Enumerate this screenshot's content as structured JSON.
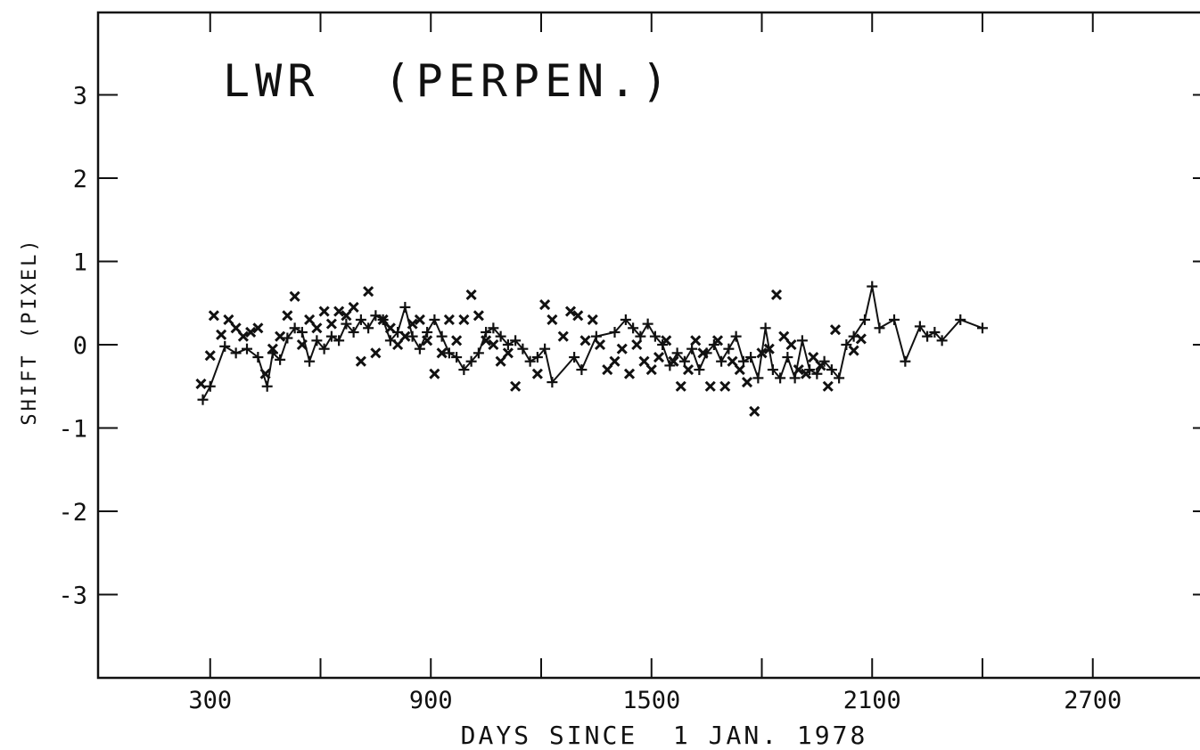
{
  "chart_data": {
    "type": "scatter",
    "title": "LWR  (PERPEN.)",
    "xlabel": "DAYS SINCE  1 JAN. 1978",
    "ylabel": "SHIFT (PIXEL)",
    "xlim": [
      0,
      2800
    ],
    "ylim": [
      -4,
      4
    ],
    "x_tick_values": [
      300,
      600,
      900,
      1200,
      1500,
      1800,
      2100,
      2400,
      2700
    ],
    "x_tick_labels": [
      "300",
      "",
      "900",
      "",
      "1500",
      "",
      "2100",
      "",
      "2700"
    ],
    "y_tick_values": [
      3,
      2,
      1,
      0,
      -1,
      -2,
      -3
    ],
    "y_tick_labels": [
      "3",
      "2",
      "1",
      "0",
      "-1",
      "-2",
      "-3"
    ],
    "grid": false,
    "series": [
      {
        "marker": "plus-line",
        "points": [
          [
            280,
            -0.66
          ],
          [
            300,
            -0.5
          ],
          [
            340,
            -0.02
          ],
          [
            370,
            -0.1
          ],
          [
            400,
            -0.05
          ],
          [
            430,
            -0.15
          ],
          [
            455,
            -0.5
          ],
          [
            470,
            -0.1
          ],
          [
            490,
            -0.18
          ],
          [
            510,
            0.08
          ],
          [
            530,
            0.2
          ],
          [
            550,
            0.15
          ],
          [
            570,
            -0.2
          ],
          [
            590,
            0.05
          ],
          [
            610,
            -0.05
          ],
          [
            630,
            0.1
          ],
          [
            650,
            0.05
          ],
          [
            670,
            0.25
          ],
          [
            690,
            0.15
          ],
          [
            710,
            0.3
          ],
          [
            730,
            0.2
          ],
          [
            750,
            0.35
          ],
          [
            770,
            0.3
          ],
          [
            790,
            0.05
          ],
          [
            810,
            0.15
          ],
          [
            830,
            0.45
          ],
          [
            850,
            0.1
          ],
          [
            870,
            -0.05
          ],
          [
            890,
            0.15
          ],
          [
            910,
            0.3
          ],
          [
            930,
            0.1
          ],
          [
            950,
            -0.1
          ],
          [
            970,
            -0.15
          ],
          [
            990,
            -0.3
          ],
          [
            1010,
            -0.2
          ],
          [
            1030,
            -0.1
          ],
          [
            1050,
            0.15
          ],
          [
            1070,
            0.2
          ],
          [
            1090,
            0.1
          ],
          [
            1110,
            0.0
          ],
          [
            1130,
            0.05
          ],
          [
            1150,
            -0.05
          ],
          [
            1170,
            -0.2
          ],
          [
            1190,
            -0.15
          ],
          [
            1210,
            -0.05
          ],
          [
            1230,
            -0.45
          ],
          [
            1290,
            -0.15
          ],
          [
            1310,
            -0.3
          ],
          [
            1350,
            0.1
          ],
          [
            1400,
            0.15
          ],
          [
            1430,
            0.3
          ],
          [
            1450,
            0.2
          ],
          [
            1470,
            0.1
          ],
          [
            1490,
            0.25
          ],
          [
            1510,
            0.1
          ],
          [
            1530,
            0.0
          ],
          [
            1550,
            -0.25
          ],
          [
            1570,
            -0.1
          ],
          [
            1590,
            -0.2
          ],
          [
            1610,
            -0.05
          ],
          [
            1630,
            -0.3
          ],
          [
            1650,
            -0.1
          ],
          [
            1670,
            0.0
          ],
          [
            1690,
            -0.2
          ],
          [
            1710,
            -0.05
          ],
          [
            1730,
            0.1
          ],
          [
            1750,
            -0.2
          ],
          [
            1770,
            -0.15
          ],
          [
            1790,
            -0.4
          ],
          [
            1810,
            0.2
          ],
          [
            1830,
            -0.3
          ],
          [
            1850,
            -0.4
          ],
          [
            1870,
            -0.15
          ],
          [
            1890,
            -0.4
          ],
          [
            1910,
            0.05
          ],
          [
            1930,
            -0.3
          ],
          [
            1950,
            -0.35
          ],
          [
            1970,
            -0.2
          ],
          [
            1990,
            -0.3
          ],
          [
            2010,
            -0.4
          ],
          [
            2030,
            0.0
          ],
          [
            2050,
            0.1
          ],
          [
            2080,
            0.3
          ],
          [
            2100,
            0.7
          ],
          [
            2120,
            0.2
          ],
          [
            2160,
            0.3
          ],
          [
            2190,
            -0.2
          ],
          [
            2230,
            0.22
          ],
          [
            2250,
            0.1
          ],
          [
            2270,
            0.15
          ],
          [
            2290,
            0.05
          ],
          [
            2340,
            0.3
          ],
          [
            2400,
            0.2
          ]
        ]
      },
      {
        "marker": "x",
        "points": [
          [
            275,
            -0.47
          ],
          [
            300,
            -0.13
          ],
          [
            310,
            0.35
          ],
          [
            330,
            0.12
          ],
          [
            350,
            0.3
          ],
          [
            370,
            0.2
          ],
          [
            390,
            0.1
          ],
          [
            410,
            0.15
          ],
          [
            430,
            0.2
          ],
          [
            450,
            -0.35
          ],
          [
            470,
            -0.05
          ],
          [
            490,
            0.1
          ],
          [
            510,
            0.35
          ],
          [
            530,
            0.58
          ],
          [
            550,
            0.0
          ],
          [
            570,
            0.3
          ],
          [
            590,
            0.2
          ],
          [
            610,
            0.4
          ],
          [
            630,
            0.25
          ],
          [
            650,
            0.4
          ],
          [
            670,
            0.35
          ],
          [
            690,
            0.45
          ],
          [
            710,
            -0.2
          ],
          [
            730,
            0.64
          ],
          [
            750,
            -0.1
          ],
          [
            770,
            0.3
          ],
          [
            790,
            0.2
          ],
          [
            810,
            0.0
          ],
          [
            830,
            0.1
          ],
          [
            850,
            0.25
          ],
          [
            870,
            0.3
          ],
          [
            890,
            0.05
          ],
          [
            910,
            -0.35
          ],
          [
            930,
            -0.1
          ],
          [
            950,
            0.3
          ],
          [
            970,
            0.05
          ],
          [
            990,
            0.3
          ],
          [
            1010,
            0.6
          ],
          [
            1030,
            0.35
          ],
          [
            1050,
            0.05
          ],
          [
            1070,
            0.0
          ],
          [
            1090,
            -0.2
          ],
          [
            1110,
            -0.1
          ],
          [
            1130,
            -0.5
          ],
          [
            1190,
            -0.35
          ],
          [
            1210,
            0.48
          ],
          [
            1230,
            0.3
          ],
          [
            1260,
            0.1
          ],
          [
            1280,
            0.4
          ],
          [
            1300,
            0.35
          ],
          [
            1320,
            0.05
          ],
          [
            1340,
            0.3
          ],
          [
            1360,
            0.0
          ],
          [
            1380,
            -0.3
          ],
          [
            1400,
            -0.2
          ],
          [
            1420,
            -0.05
          ],
          [
            1440,
            -0.35
          ],
          [
            1460,
            0.0
          ],
          [
            1480,
            -0.2
          ],
          [
            1500,
            -0.3
          ],
          [
            1520,
            -0.15
          ],
          [
            1540,
            0.05
          ],
          [
            1560,
            -0.2
          ],
          [
            1580,
            -0.5
          ],
          [
            1600,
            -0.3
          ],
          [
            1620,
            0.05
          ],
          [
            1640,
            -0.1
          ],
          [
            1660,
            -0.5
          ],
          [
            1680,
            0.05
          ],
          [
            1700,
            -0.5
          ],
          [
            1720,
            -0.2
          ],
          [
            1740,
            -0.3
          ],
          [
            1760,
            -0.45
          ],
          [
            1780,
            -0.8
          ],
          [
            1800,
            -0.1
          ],
          [
            1820,
            -0.05
          ],
          [
            1840,
            0.6
          ],
          [
            1860,
            0.1
          ],
          [
            1880,
            0.0
          ],
          [
            1900,
            -0.3
          ],
          [
            1920,
            -0.35
          ],
          [
            1940,
            -0.15
          ],
          [
            1960,
            -0.25
          ],
          [
            1980,
            -0.5
          ],
          [
            2000,
            0.18
          ],
          [
            2050,
            -0.07
          ],
          [
            2070,
            0.07
          ]
        ]
      }
    ]
  }
}
